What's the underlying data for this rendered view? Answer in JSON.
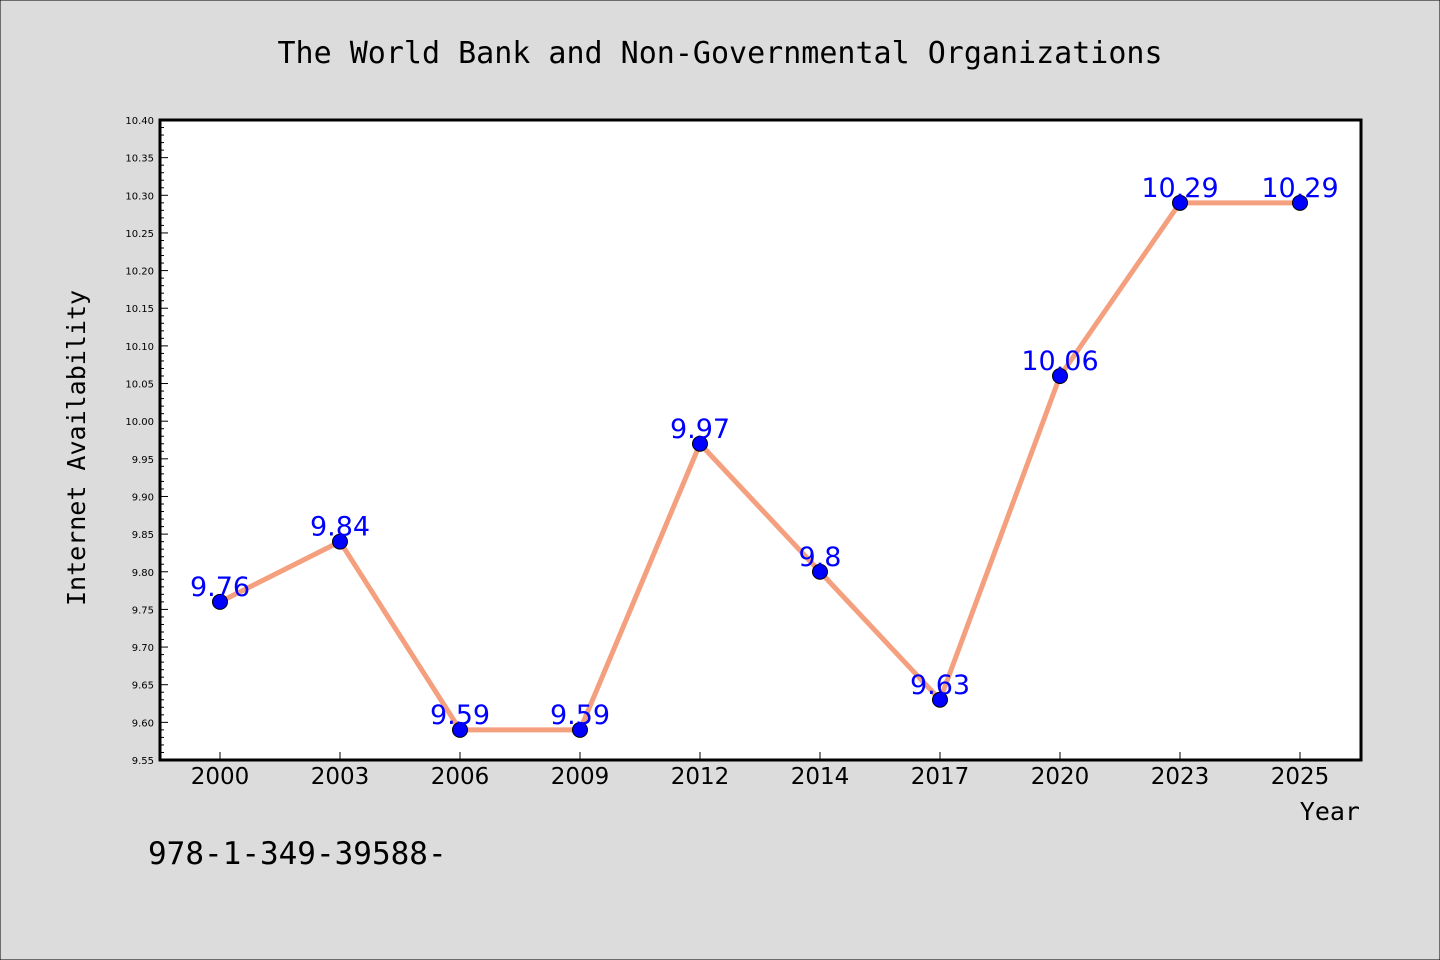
{
  "page": {
    "background": "#dcdcdc",
    "footnote": "978-1-349-39588-"
  },
  "chart_data": {
    "type": "line",
    "title": "The World Bank and Non-Governmental Organizations",
    "xlabel": "Year",
    "ylabel": "Internet Availability",
    "categories": [
      "2000",
      "2003",
      "2006",
      "2009",
      "2012",
      "2014",
      "2017",
      "2020",
      "2023",
      "2025"
    ],
    "series": [
      {
        "values": [
          9.76,
          9.84,
          9.59,
          9.59,
          9.97,
          9.8,
          9.63,
          10.06,
          10.29,
          10.29
        ],
        "data_labels": [
          "9.76",
          "9.84",
          "9.59",
          "9.59",
          "9.97",
          "9.8",
          "9.63",
          "10.06",
          "10.29",
          "10.29"
        ],
        "line_color": "#f4a07e",
        "marker_color": "#0000ff",
        "label_color": "#0000ff"
      }
    ],
    "ylim": [
      9.55,
      10.4
    ],
    "yticks": [
      "9.55",
      "9.60",
      "9.65",
      "9.70",
      "9.75",
      "9.80",
      "9.85",
      "9.90",
      "9.95",
      "10.00",
      "10.05",
      "10.10",
      "10.15",
      "10.20",
      "10.25",
      "10.30",
      "10.35",
      "10.40"
    ],
    "grid": false,
    "legend": "none",
    "plot_background": "#ffffff"
  }
}
